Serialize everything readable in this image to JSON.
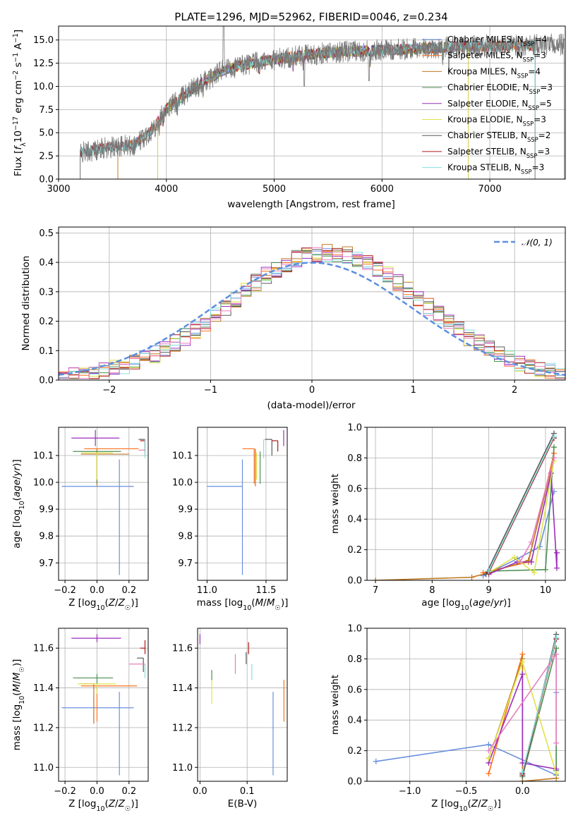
{
  "colors": {
    "Chabrier MILES": "#6a8fde",
    "Salpeter MILES": "#ff6f1a",
    "Kroupa MILES": "#c07a24",
    "Chabrier ELODIE": "#4f8f54",
    "Salpeter ELODIE": "#9a2dbb",
    "Kroupa ELODIE": "#e0e24a",
    "Chabrier STELIB": "#5a5a5a",
    "Salpeter STELIB": "#b01818",
    "Kroupa STELIB": "#86dede",
    "pink": "#e67fbc",
    "normal": "#5b8fde"
  },
  "chart_data": [
    {
      "id": "spectrum",
      "type": "line",
      "title": "PLATE=1296, MJD=52962, FIBERID=0046, z=0.234",
      "xlabel": "wavelength [Angstrom, rest frame]",
      "ylabel": "Flux [f_λ10^-17 erg cm^-2 s^-1 A^-1]",
      "xlim": [
        3000,
        7700
      ],
      "ylim": [
        0,
        16.5
      ],
      "xticks": [
        3000,
        4000,
        5000,
        6000,
        7000
      ],
      "yticks": [
        0.0,
        2.5,
        5.0,
        7.5,
        10.0,
        12.5,
        15.0
      ],
      "legend_position": "top-right",
      "legend": [
        "Chabrier MILES, N_SSP=4",
        "Salpeter MILES, N_SSP=3",
        "Kroupa MILES, N_SSP=4",
        "Chabrier ELODIE, N_SSP=3",
        "Salpeter ELODIE, N_SSP=5",
        "Kroupa ELODIE, N_SSP=3",
        "Chabrier STELIB, N_SSP=2",
        "Salpeter STELIB, N_SSP=3",
        "Kroupa STELIB, N_SSP=3"
      ],
      "series_keys": [
        "Chabrier MILES",
        "Salpeter MILES",
        "Kroupa MILES",
        "Chabrier ELODIE",
        "Salpeter ELODIE",
        "Kroupa ELODIE",
        "Chabrier STELIB",
        "Salpeter STELIB",
        "Kroupa STELIB"
      ],
      "continuum": {
        "x": [
          3200,
          3400,
          3550,
          3700,
          3800,
          3900,
          4000,
          4100,
          4200,
          4300,
          4400,
          4500,
          4700,
          5000,
          5300,
          5600,
          6000,
          6400,
          6800,
          7200,
          7600
        ],
        "y": [
          2.8,
          3.3,
          3.5,
          3.7,
          4.6,
          5.8,
          7.6,
          8.4,
          9.4,
          10.2,
          10.8,
          11.6,
          12.3,
          12.9,
          13.4,
          13.7,
          13.9,
          14.1,
          14.3,
          14.4,
          14.5
        ]
      },
      "data_range": [
        3200,
        7690
      ],
      "model_ranges": [
        [
          3550,
          7420
        ],
        [
          3550,
          7420
        ],
        [
          3550,
          7420
        ],
        [
          3920,
          6800
        ],
        [
          3920,
          6800
        ],
        [
          3920,
          6800
        ],
        [
          3200,
          7420
        ],
        [
          3200,
          7420
        ],
        [
          3200,
          7420
        ]
      ]
    },
    {
      "id": "residuals",
      "type": "histogram",
      "xlabel": "(data-model)/error",
      "ylabel": "Normed distribution",
      "xlim": [
        -2.5,
        2.5
      ],
      "ylim": [
        0,
        0.52
      ],
      "xticks": [
        -2,
        -1,
        0,
        1,
        2
      ],
      "yticks": [
        0.0,
        0.1,
        0.2,
        0.3,
        0.4,
        0.5
      ],
      "reference_label": "𝒩(0, 1)",
      "legend_position": "top-right",
      "bin_width": 0.1
    },
    {
      "id": "age-vs-Z",
      "type": "errorbar",
      "xlabel": "Z [log10(Z/Z☉)]",
      "ylabel": "age  [log10(age/yr)]",
      "xlim": [
        -0.24,
        0.32
      ],
      "ylim": [
        9.635,
        10.205
      ],
      "xticks": [
        -0.2,
        0.0,
        0.2
      ],
      "yticks": [
        9.7,
        9.8,
        9.9,
        10.0,
        10.1
      ],
      "points": [
        {
          "c": "Chabrier MILES",
          "x": 0.14,
          "y": 9.985,
          "xe": [
            0.36,
            0.09
          ],
          "ye": [
            0.33,
            0.1
          ]
        },
        {
          "c": "Salpeter MILES",
          "x": 0.0,
          "y": 10.125,
          "xe": [
            0.08,
            0.26
          ],
          "ye": [
            0.13,
            0.0
          ]
        },
        {
          "c": "Kroupa MILES",
          "x": 0.0,
          "y": 10.105,
          "xe": [
            0.1,
            0.2
          ],
          "ye": [
            0.12,
            0.02
          ]
        },
        {
          "c": "Chabrier ELODIE",
          "x": 0.0,
          "y": 10.115,
          "xe": [
            0.15,
            0.15
          ],
          "ye": [
            0.12,
            0.0
          ]
        },
        {
          "c": "Salpeter ELODIE",
          "x": -0.01,
          "y": 10.165,
          "xe": [
            0.15,
            0.15
          ],
          "ye": [
            0.03,
            0.03
          ]
        },
        {
          "c": "Kroupa ELODIE",
          "x": 0.0,
          "y": 10.11,
          "xe": [
            0.1,
            0.1
          ],
          "ye": [
            0.1,
            0.0
          ]
        },
        {
          "c": "Chabrier STELIB",
          "x": 0.3,
          "y": 10.16,
          "xe": [
            0.04,
            0.0
          ],
          "ye": [
            0.06,
            0.0
          ]
        },
        {
          "c": "Salpeter STELIB",
          "x": 0.3,
          "y": 10.155,
          "xe": [
            0.03,
            0.0
          ],
          "ye": [
            0.04,
            0.0
          ]
        },
        {
          "c": "Kroupa STELIB",
          "x": 0.3,
          "y": 10.12,
          "xe": [
            0.02,
            0.0
          ],
          "ye": [
            0.03,
            0.04
          ]
        },
        {
          "c": "pink",
          "x": 0.3,
          "y": 10.12,
          "xe": [
            0.04,
            0.0
          ],
          "ye": [
            0.0,
            0.0
          ]
        }
      ]
    },
    {
      "id": "age-vs-mass",
      "type": "errorbar",
      "xlabel": "mass [log10(M/M☉)]",
      "ylabel": "",
      "xlim": [
        10.92,
        11.68
      ],
      "ylim": [
        9.635,
        10.205
      ],
      "xticks": [
        11.0,
        11.5
      ],
      "yticks": [
        9.7,
        9.8,
        9.9,
        10.0,
        10.1
      ],
      "points": [
        {
          "c": "Chabrier MILES",
          "x": 11.3,
          "y": 9.985,
          "xe": [
            0.3,
            0.0
          ],
          "ye": [
            0.33,
            0.1
          ]
        },
        {
          "c": "Salpeter MILES",
          "x": 11.4,
          "y": 10.125,
          "xe": [
            0.1,
            0.0
          ],
          "ye": [
            0.13,
            0.0
          ]
        },
        {
          "c": "Kroupa MILES",
          "x": 11.41,
          "y": 10.105,
          "xe": [
            0.0,
            0.0
          ],
          "ye": [
            0.12,
            0.02
          ]
        },
        {
          "c": "Chabrier ELODIE",
          "x": 11.45,
          "y": 10.115,
          "xe": [
            0.0,
            0.0
          ],
          "ye": [
            0.12,
            0.0
          ]
        },
        {
          "c": "Salpeter ELODIE",
          "x": 11.65,
          "y": 10.165,
          "xe": [
            0.0,
            0.0
          ],
          "ye": [
            0.03,
            0.03
          ]
        },
        {
          "c": "Kroupa ELODIE",
          "x": 11.42,
          "y": 10.11,
          "xe": [
            0.0,
            0.0
          ],
          "ye": [
            0.1,
            0.0
          ]
        },
        {
          "c": "Chabrier STELIB",
          "x": 11.55,
          "y": 10.16,
          "xe": [
            0.06,
            0.0
          ],
          "ye": [
            0.06,
            0.0
          ]
        },
        {
          "c": "Salpeter STELIB",
          "x": 11.6,
          "y": 10.155,
          "xe": [
            0.05,
            0.0
          ],
          "ye": [
            0.04,
            0.0
          ]
        },
        {
          "c": "Kroupa STELIB",
          "x": 11.48,
          "y": 10.12,
          "xe": [
            0.0,
            0.0
          ],
          "ye": [
            0.03,
            0.04
          ]
        },
        {
          "c": "pink",
          "x": 11.52,
          "y": 10.12,
          "xe": [
            0.0,
            0.0
          ],
          "ye": [
            0.0,
            0.0
          ]
        }
      ]
    },
    {
      "id": "weight-vs-age",
      "type": "line",
      "xlabel": "age  [log10(age/yr)]",
      "ylabel": "mass weight",
      "xlim": [
        6.85,
        10.35
      ],
      "ylim": [
        0,
        1.0
      ],
      "xticks": [
        7,
        8,
        9,
        10
      ],
      "yticks": [
        0.0,
        0.2,
        0.4,
        0.6,
        0.8,
        1.0
      ],
      "series": [
        {
          "c": "Chabrier MILES",
          "x": [
            8.9,
            9.5,
            9.9,
            10.15
          ],
          "y": [
            0.03,
            0.14,
            0.22,
            0.58
          ]
        },
        {
          "c": "Salpeter MILES",
          "x": [
            8.9,
            9.7,
            10.15
          ],
          "y": [
            0.05,
            0.12,
            0.83
          ]
        },
        {
          "c": "Kroupa MILES",
          "x": [
            7.0,
            8.7,
            9.0,
            9.7,
            10.15
          ],
          "y": [
            0.0,
            0.02,
            0.05,
            0.13,
            0.8
          ]
        },
        {
          "c": "Chabrier ELODIE",
          "x": [
            9.0,
            10.0,
            10.15
          ],
          "y": [
            0.06,
            0.07,
            0.87
          ]
        },
        {
          "c": "Salpeter ELODIE",
          "x": [
            9.0,
            9.5,
            9.75,
            10.1,
            10.2,
            10.2
          ],
          "y": [
            0.04,
            0.12,
            0.12,
            0.7,
            0.08,
            0.18
          ]
        },
        {
          "c": "Kroupa ELODIE",
          "x": [
            9.0,
            9.45,
            9.8,
            10.15
          ],
          "y": [
            0.05,
            0.15,
            0.05,
            0.78
          ]
        },
        {
          "c": "Chabrier STELIB",
          "x": [
            8.95,
            10.15
          ],
          "y": [
            0.04,
            0.96
          ]
        },
        {
          "c": "Salpeter STELIB",
          "x": [
            9.0,
            10.15
          ],
          "y": [
            0.05,
            0.93
          ]
        },
        {
          "c": "Kroupa STELIB",
          "x": [
            9.0,
            10.15
          ],
          "y": [
            0.06,
            0.94
          ]
        },
        {
          "c": "pink",
          "x": [
            9.55,
            9.75,
            10.15
          ],
          "y": [
            0.12,
            0.25,
            0.8
          ]
        }
      ]
    },
    {
      "id": "mass-vs-Z",
      "type": "errorbar",
      "xlabel": "Z [log10(Z/Z☉)]",
      "ylabel": "mass [log10(M/M☉)]",
      "xlim": [
        -0.24,
        0.32
      ],
      "ylim": [
        10.93,
        11.7
      ],
      "xticks": [
        -0.2,
        0.0,
        0.2
      ],
      "yticks": [
        11.0,
        11.2,
        11.4,
        11.6
      ],
      "points": [
        {
          "c": "Chabrier MILES",
          "x": 0.14,
          "y": 11.3,
          "xe": [
            0.36,
            0.09
          ],
          "ye": [
            0.34,
            0.08
          ]
        },
        {
          "c": "Salpeter MILES",
          "x": 0.0,
          "y": 11.41,
          "xe": [
            0.1,
            0.25
          ],
          "ye": [
            0.18,
            0.0
          ]
        },
        {
          "c": "Kroupa MILES",
          "x": -0.02,
          "y": 11.42,
          "xe": [
            0.08,
            0.0
          ],
          "ye": [
            0.2,
            0.0
          ]
        },
        {
          "c": "Chabrier ELODIE",
          "x": 0.0,
          "y": 11.45,
          "xe": [
            0.15,
            0.1
          ],
          "ye": [
            0.06,
            0.02
          ]
        },
        {
          "c": "Salpeter ELODIE",
          "x": 0.0,
          "y": 11.65,
          "xe": [
            0.16,
            0.15
          ],
          "ye": [
            0.02,
            0.02
          ]
        },
        {
          "c": "Kroupa ELODIE",
          "x": 0.0,
          "y": 11.42,
          "xe": [
            0.12,
            0.12
          ],
          "ye": [
            0.05,
            0.0
          ]
        },
        {
          "c": "Chabrier STELIB",
          "x": 0.29,
          "y": 11.55,
          "xe": [
            0.04,
            0.0
          ],
          "ye": [
            0.07,
            0.0
          ]
        },
        {
          "c": "Salpeter STELIB",
          "x": 0.3,
          "y": 11.6,
          "xe": [
            0.03,
            0.0
          ],
          "ye": [
            0.03,
            0.04
          ]
        },
        {
          "c": "Kroupa STELIB",
          "x": 0.3,
          "y": 11.48,
          "xe": [
            0.0,
            0.0
          ],
          "ye": [
            0.03,
            0.04
          ]
        },
        {
          "c": "pink",
          "x": 0.3,
          "y": 11.52,
          "xe": [
            0.1,
            0.0
          ],
          "ye": [
            0.0,
            0.0
          ]
        }
      ]
    },
    {
      "id": "mass-vs-ebv",
      "type": "errorbar",
      "xlabel": "E(B-V)",
      "ylabel": "",
      "xlim": [
        -0.005,
        0.185
      ],
      "ylim": [
        10.93,
        11.7
      ],
      "xticks": [
        0.0,
        0.1
      ],
      "yticks": [
        11.0,
        11.2,
        11.4,
        11.6
      ],
      "points": [
        {
          "c": "Chabrier MILES",
          "x": 0.155,
          "y": 11.3,
          "xe": [
            0.0,
            0.0
          ],
          "ye": [
            0.34,
            0.08
          ]
        },
        {
          "c": "Salpeter MILES",
          "x": 0.178,
          "y": 11.33,
          "xe": [
            0.0,
            0.0
          ],
          "ye": [
            0.1,
            0.11
          ]
        },
        {
          "c": "Kroupa ELODIE",
          "x": 0.025,
          "y": 11.4,
          "xe": [
            0.0,
            0.0
          ],
          "ye": [
            0.08,
            0.06
          ]
        },
        {
          "c": "Chabrier ELODIE",
          "x": 0.025,
          "y": 11.46,
          "xe": [
            0.0,
            0.0
          ],
          "ye": [
            0.02,
            0.03
          ]
        },
        {
          "c": "Salpeter ELODIE",
          "x": 0.0,
          "y": 11.65,
          "xe": [
            0.0,
            0.0
          ],
          "ye": [
            0.03,
            0.02
          ]
        },
        {
          "c": "Chabrier STELIB",
          "x": 0.098,
          "y": 11.55,
          "xe": [
            0.0,
            0.0
          ],
          "ye": [
            0.03,
            0.03
          ]
        },
        {
          "c": "Salpeter STELIB",
          "x": 0.103,
          "y": 11.6,
          "xe": [
            0.0,
            0.0
          ],
          "ye": [
            0.03,
            0.03
          ]
        },
        {
          "c": "Kroupa STELIB",
          "x": 0.11,
          "y": 11.48,
          "xe": [
            0.0,
            0.0
          ],
          "ye": [
            0.04,
            0.04
          ]
        },
        {
          "c": "pink",
          "x": 0.075,
          "y": 11.52,
          "xe": [
            0.0,
            0.0
          ],
          "ye": [
            0.05,
            0.05
          ]
        }
      ]
    },
    {
      "id": "weight-vs-Z",
      "type": "line",
      "xlabel": "Z [log10(Z/Z☉)]",
      "ylabel": "mass weight",
      "xlim": [
        -1.38,
        0.38
      ],
      "ylim": [
        0,
        1.0
      ],
      "xticks": [
        -1.0,
        -0.5,
        0.0
      ],
      "yticks": [
        0.0,
        0.2,
        0.4,
        0.6,
        0.8,
        1.0
      ],
      "series": [
        {
          "c": "Chabrier MILES",
          "x": [
            -1.3,
            -0.3,
            0.3,
            0.3
          ],
          "y": [
            0.13,
            0.24,
            0.04,
            0.58
          ]
        },
        {
          "c": "Salpeter MILES",
          "x": [
            -0.3,
            0.0,
            0.0
          ],
          "y": [
            0.05,
            0.83,
            0.0
          ]
        },
        {
          "c": "Kroupa MILES",
          "x": [
            -0.3,
            0.0,
            0.0,
            0.3
          ],
          "y": [
            0.15,
            0.8,
            0.0,
            0.02
          ]
        },
        {
          "c": "Chabrier ELODIE",
          "x": [
            0.0,
            0.3,
            0.3
          ],
          "y": [
            0.03,
            0.87,
            0.07
          ]
        },
        {
          "c": "Salpeter ELODIE",
          "x": [
            -0.3,
            0.0,
            0.0,
            0.3
          ],
          "y": [
            0.12,
            0.7,
            0.12,
            0.08
          ]
        },
        {
          "c": "Kroupa ELODIE",
          "x": [
            -0.3,
            0.0,
            0.3
          ],
          "y": [
            0.15,
            0.78,
            0.05
          ]
        },
        {
          "c": "Chabrier STELIB",
          "x": [
            0.0,
            0.3
          ],
          "y": [
            0.04,
            0.96
          ]
        },
        {
          "c": "Salpeter STELIB",
          "x": [
            0.0,
            0.3
          ],
          "y": [
            0.05,
            0.93
          ]
        },
        {
          "c": "Kroupa STELIB",
          "x": [
            0.0,
            0.3
          ],
          "y": [
            0.06,
            0.94
          ]
        },
        {
          "c": "pink",
          "x": [
            -0.3,
            0.3,
            0.3
          ],
          "y": [
            0.2,
            0.83,
            0.25
          ]
        }
      ]
    }
  ]
}
